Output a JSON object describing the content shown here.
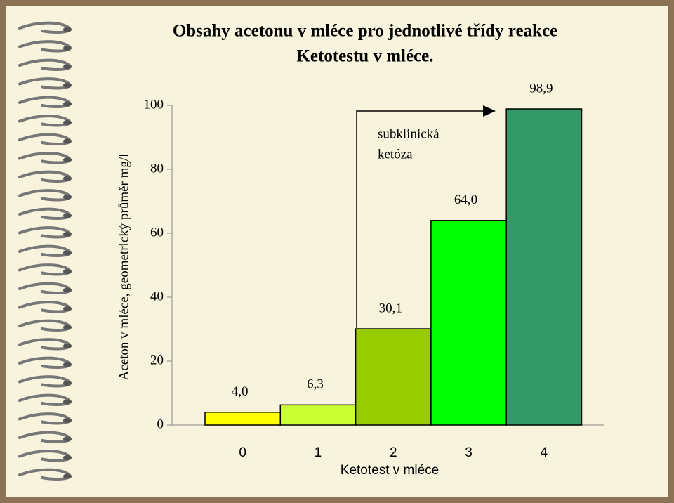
{
  "chart_data": {
    "type": "bar",
    "title": [
      "Obsahy acetonu v mléce pro jednotlivé třídy reakce",
      "Ketotestu v mléce."
    ],
    "y_label": "Aceton v mléce, geometrický průměr mg/l",
    "x_label": "Ketotest v mléce",
    "annotation": [
      "subklinická",
      "ketóza"
    ],
    "categories": [
      "0",
      "1",
      "2",
      "3",
      "4"
    ],
    "values": [
      4.0,
      6.3,
      30.1,
      64.0,
      98.9
    ],
    "value_labels": [
      "4,0",
      "6,3",
      "30,1",
      "64,0",
      "98,9"
    ],
    "colors": [
      "#ffff00",
      "#ccff33",
      "#99cc00",
      "#00ff00",
      "#339966"
    ],
    "ylim": [
      0,
      100
    ],
    "yticks": [
      0,
      20,
      40,
      60,
      80,
      100
    ]
  }
}
